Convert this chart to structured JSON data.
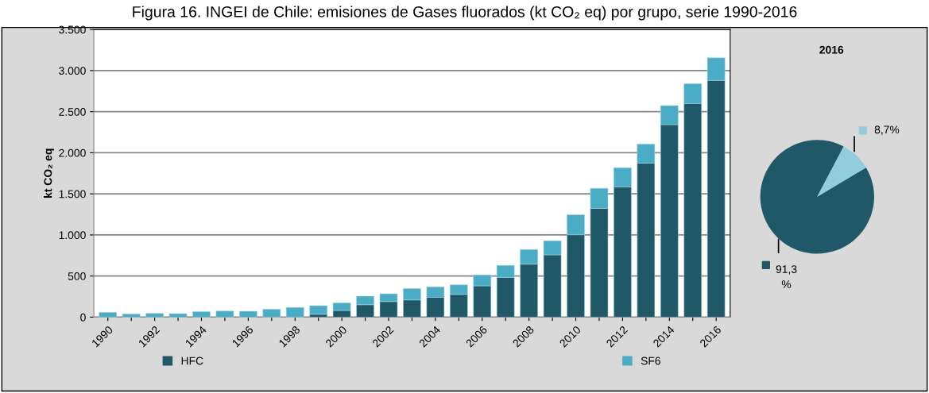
{
  "chart_data": [
    {
      "type": "bar",
      "title": "Figura 16. INGEI de Chile: emisiones de Gases fluorados (kt CO₂ eq) por grupo, serie 1990-2016",
      "ylabel": "kt CO₂ eq",
      "stacked": true,
      "grid": "y",
      "legend": "bottom",
      "categories": [
        "1990",
        null,
        "1992",
        null,
        "1994",
        null,
        "1996",
        null,
        "1998",
        null,
        "2000",
        null,
        "2002",
        null,
        "2004",
        null,
        "2006",
        null,
        "2008",
        null,
        "2010",
        null,
        "2012",
        null,
        "2014",
        null,
        "2016"
      ],
      "series": [
        {
          "name": "HFC",
          "color": "#215868",
          "values": [
            0,
            0,
            0,
            0,
            0,
            0,
            0,
            0,
            0,
            35,
            81,
            152,
            190,
            210,
            242,
            277,
            381,
            484,
            645,
            758,
            1003,
            1323,
            1584,
            1874,
            2342,
            2600,
            2881
          ]
        },
        {
          "name": "SF6",
          "color": "#4bacc6",
          "values": [
            58,
            39,
            45,
            42,
            68,
            74,
            71,
            97,
            119,
            104,
            93,
            103,
            94,
            138,
            126,
            117,
            132,
            145,
            178,
            171,
            242,
            245,
            235,
            232,
            232,
            239,
            274
          ]
        }
      ],
      "ylim": [
        0,
        3500
      ],
      "yticks": [
        0,
        500,
        {
          "value": 1000,
          "label": "1.000"
        },
        {
          "value": 1500,
          "label": "1.500"
        },
        {
          "value": 2000,
          "label": "2.000"
        },
        {
          "value": 2500,
          "label": "2.500"
        },
        {
          "value": 3000,
          "label": "3.000"
        },
        {
          "value": 3500,
          "label": "3.500"
        }
      ]
    },
    {
      "type": "pie",
      "title": "2016",
      "categories": [
        null,
        null
      ],
      "values": [
        91.3,
        8.7
      ],
      "colors": [
        "#215868",
        "#92cddc"
      ],
      "value_labels": [
        "91,3\n%",
        "8,7%"
      ]
    }
  ]
}
